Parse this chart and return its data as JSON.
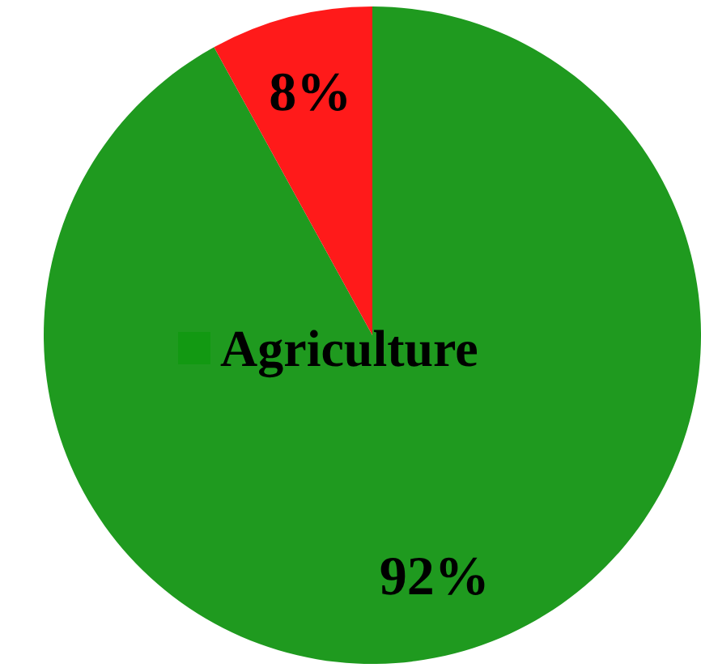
{
  "chart_data": {
    "type": "pie",
    "categories": [
      "Agriculture",
      null
    ],
    "values": [
      92,
      8
    ],
    "colors": [
      "#1f9a1f",
      "#ff1a1a"
    ],
    "value_labels": [
      "92%",
      "8%"
    ]
  }
}
